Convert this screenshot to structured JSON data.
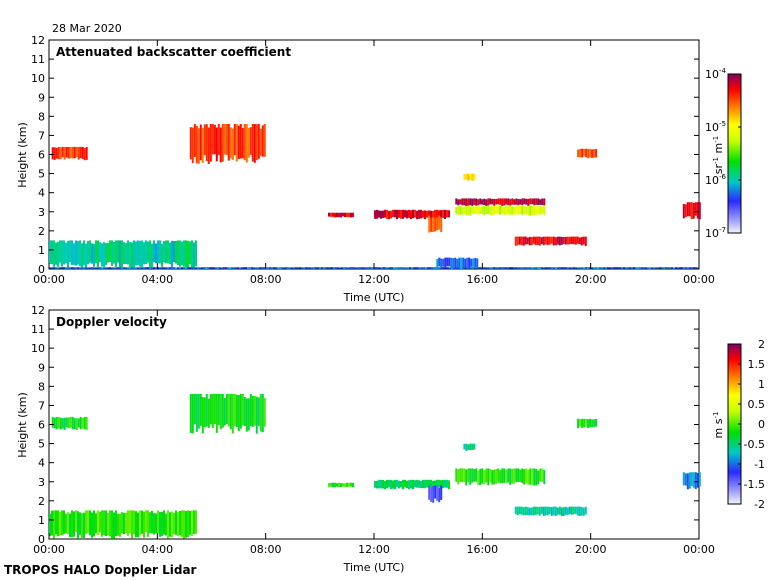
{
  "date_label": "28 Mar 2020",
  "footer_label": "TROPOS HALO Doppler Lidar",
  "chart_data": [
    {
      "type": "heatmap",
      "title": "Attenuated backscatter coefficient",
      "xlabel": "Time (UTC)",
      "ylabel": "Height (km)",
      "xticks": [
        "00:00",
        "04:00",
        "08:00",
        "12:00",
        "16:00",
        "20:00",
        "00:00"
      ],
      "xlim_hours": [
        0,
        24
      ],
      "ylim": [
        0,
        12
      ],
      "yticks": [
        "0",
        "1",
        "2",
        "3",
        "4",
        "5",
        "6",
        "7",
        "8",
        "9",
        "10",
        "11",
        "12"
      ],
      "colorbar": {
        "label": "sr-1 m-1",
        "scale": "log",
        "range": [
          1e-07,
          0.0001
        ],
        "ticks": [
          {
            "base": "10",
            "exp": "-7",
            "v": -7
          },
          {
            "base": "10",
            "exp": "-6",
            "v": -6
          },
          {
            "base": "10",
            "exp": "-5",
            "v": -5
          },
          {
            "base": "10",
            "exp": "-4",
            "v": -4
          }
        ]
      },
      "features": [
        {
          "t0": 0.0,
          "t1": 5.4,
          "h0": 0.0,
          "h1": 1.5,
          "level": 0.35,
          "name": "boundary-layer"
        },
        {
          "t0": 0.0,
          "t1": 24.0,
          "h0": 0.0,
          "h1": 0.1,
          "level": 0.25,
          "name": "surface-layer"
        },
        {
          "t0": 0.1,
          "t1": 1.4,
          "h0": 5.7,
          "h1": 6.4,
          "level": 0.85,
          "name": "cloud-00h"
        },
        {
          "t0": 5.2,
          "t1": 8.0,
          "h0": 5.5,
          "h1": 7.6,
          "level": 0.85,
          "name": "cloud-06h"
        },
        {
          "t0": 10.3,
          "t1": 11.2,
          "h0": 2.7,
          "h1": 2.95,
          "level": 0.92,
          "name": "layer-10h"
        },
        {
          "t0": 12.0,
          "t1": 14.8,
          "h0": 2.6,
          "h1": 3.1,
          "level": 0.92,
          "name": "layer-12h"
        },
        {
          "t0": 14.0,
          "t1": 14.5,
          "h0": 1.9,
          "h1": 2.8,
          "level": 0.85,
          "name": "fall-14h"
        },
        {
          "t0": 15.0,
          "t1": 18.3,
          "h0": 3.3,
          "h1": 3.7,
          "level": 0.95,
          "name": "layer-16h"
        },
        {
          "t0": 15.0,
          "t1": 18.3,
          "h0": 2.8,
          "h1": 3.3,
          "level": 0.6,
          "name": "layer-16h-lower"
        },
        {
          "t0": 17.2,
          "t1": 19.8,
          "h0": 1.2,
          "h1": 1.7,
          "level": 0.92,
          "name": "layer-18h"
        },
        {
          "t0": 19.5,
          "t1": 20.2,
          "h0": 5.8,
          "h1": 6.3,
          "level": 0.85,
          "name": "cloud-20h"
        },
        {
          "t0": 15.3,
          "t1": 15.7,
          "h0": 4.6,
          "h1": 5.0,
          "level": 0.7,
          "name": "cloud-15h"
        },
        {
          "t0": 23.4,
          "t1": 24.0,
          "h0": 2.6,
          "h1": 3.5,
          "level": 0.92,
          "name": "layer-23h"
        },
        {
          "t0": 14.3,
          "t1": 15.8,
          "h0": 0.0,
          "h1": 0.6,
          "level": 0.25,
          "name": "near-surface-15h"
        }
      ]
    },
    {
      "type": "heatmap",
      "title": "Doppler velocity",
      "xlabel": "Time (UTC)",
      "ylabel": "Height (km)",
      "xticks": [
        "00:00",
        "04:00",
        "08:00",
        "12:00",
        "16:00",
        "20:00",
        "00:00"
      ],
      "xlim_hours": [
        0,
        24
      ],
      "ylim": [
        0,
        12
      ],
      "yticks": [
        "0",
        "1",
        "2",
        "3",
        "4",
        "5",
        "6",
        "7",
        "8",
        "9",
        "10",
        "11",
        "12"
      ],
      "colorbar": {
        "label": "m s-1",
        "scale": "linear",
        "range": [
          -2,
          2
        ],
        "ticks": [
          "2",
          "1.5",
          "1",
          "0.5",
          "0",
          "-0.5",
          "-1",
          "-1.5",
          "-2"
        ]
      },
      "features": [
        {
          "t0": 0.0,
          "t1": 5.4,
          "h0": 0.0,
          "h1": 1.5,
          "level": 0.47,
          "name": "boundary-layer"
        },
        {
          "t0": 0.1,
          "t1": 1.4,
          "h0": 5.7,
          "h1": 6.4,
          "level": 0.45,
          "name": "cloud-00h"
        },
        {
          "t0": 5.2,
          "t1": 8.0,
          "h0": 5.5,
          "h1": 7.6,
          "level": 0.45,
          "name": "cloud-06h"
        },
        {
          "t0": 10.3,
          "t1": 11.2,
          "h0": 2.7,
          "h1": 2.95,
          "level": 0.45,
          "name": "layer-10h"
        },
        {
          "t0": 12.0,
          "t1": 14.8,
          "h0": 2.6,
          "h1": 3.1,
          "level": 0.4,
          "name": "layer-12h"
        },
        {
          "t0": 14.0,
          "t1": 14.5,
          "h0": 1.9,
          "h1": 2.8,
          "level": 0.15,
          "name": "fall-14h"
        },
        {
          "t0": 15.0,
          "t1": 18.3,
          "h0": 2.8,
          "h1": 3.7,
          "level": 0.46,
          "name": "layer-16h"
        },
        {
          "t0": 17.2,
          "t1": 19.8,
          "h0": 1.2,
          "h1": 1.7,
          "level": 0.35,
          "name": "layer-18h"
        },
        {
          "t0": 19.5,
          "t1": 20.2,
          "h0": 5.8,
          "h1": 6.3,
          "level": 0.45,
          "name": "cloud-20h"
        },
        {
          "t0": 15.3,
          "t1": 15.7,
          "h0": 4.6,
          "h1": 5.0,
          "level": 0.38,
          "name": "cloud-15h"
        },
        {
          "t0": 23.4,
          "t1": 24.0,
          "h0": 2.6,
          "h1": 3.5,
          "level": 0.25,
          "name": "layer-23h"
        }
      ]
    }
  ]
}
